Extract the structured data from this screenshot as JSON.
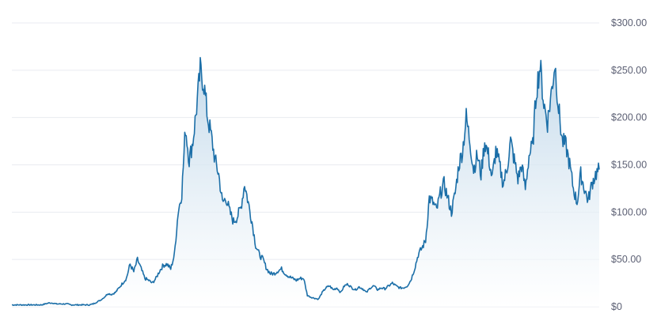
{
  "chart_data": {
    "type": "area",
    "title": "",
    "xlabel": "",
    "ylabel": "",
    "ylim": [
      0,
      300
    ],
    "y_ticks": [
      {
        "value": 300,
        "label": "$300.00"
      },
      {
        "value": 250,
        "label": "$250.00"
      },
      {
        "value": 200,
        "label": "$200.00"
      },
      {
        "value": 150,
        "label": "$150.00"
      },
      {
        "value": 100,
        "label": "$100.00"
      },
      {
        "value": 50,
        "label": "$50.00"
      },
      {
        "value": 0,
        "label": "$0"
      }
    ],
    "grid": true,
    "legend": "none",
    "colors": {
      "line": "#1c6fa8",
      "area_top": "#bcd5e8",
      "area_bottom": "#ffffff",
      "grid": "#e9ebf0",
      "tick_text": "#5b5f73"
    },
    "series": [
      {
        "values": [
          2,
          2,
          2,
          2,
          2,
          2,
          2,
          2,
          2,
          3,
          4,
          4,
          3,
          3,
          3,
          3,
          2,
          2,
          2,
          2,
          2,
          2,
          3,
          5,
          7,
          10,
          14,
          13,
          15,
          20,
          25,
          30,
          45,
          37,
          50,
          40,
          30,
          28,
          25,
          30,
          38,
          44,
          45,
          40,
          55,
          100,
          120,
          190,
          155,
          175,
          210,
          250,
          235,
          200,
          180,
          155,
          140,
          110,
          115,
          100,
          90,
          95,
          105,
          130,
          110,
          90,
          65,
          55,
          50,
          40,
          35,
          35,
          38,
          40,
          35,
          32,
          30,
          28,
          30,
          30,
          12,
          10,
          9,
          8,
          15,
          20,
          22,
          18,
          20,
          15,
          22,
          24,
          20,
          18,
          21,
          19,
          15,
          20,
          22,
          18,
          20,
          19,
          22,
          25,
          22,
          20,
          20,
          22,
          28,
          40,
          55,
          62,
          70,
          115,
          110,
          102,
          120,
          130,
          115,
          100,
          120,
          150,
          165,
          200,
          175,
          145,
          160,
          140,
          175,
          160,
          135,
          165,
          150,
          130,
          145,
          175,
          155,
          135,
          150,
          125,
          160,
          170,
          230,
          255,
          215,
          195,
          225,
          258,
          210,
          175,
          170,
          150,
          125,
          110,
          140,
          125,
          112,
          130,
          140,
          145
        ]
      }
    ]
  }
}
